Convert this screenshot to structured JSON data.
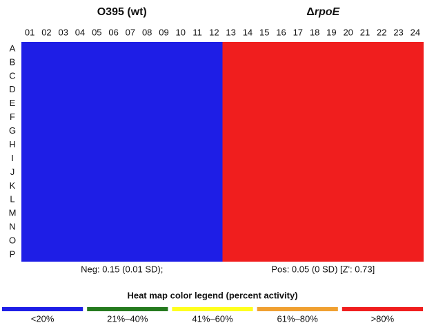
{
  "chart_data": {
    "type": "heatmap",
    "columns": [
      "01",
      "02",
      "03",
      "04",
      "05",
      "06",
      "07",
      "08",
      "09",
      "10",
      "11",
      "12",
      "13",
      "14",
      "15",
      "16",
      "17",
      "18",
      "19",
      "20",
      "21",
      "22",
      "23",
      "24"
    ],
    "rows": [
      "A",
      "B",
      "C",
      "D",
      "E",
      "F",
      "G",
      "H",
      "I",
      "J",
      "K",
      "L",
      "M",
      "N",
      "O",
      "P"
    ],
    "groups": [
      {
        "title": "O395 (wt)",
        "span": 12,
        "color": "#1e1ee6",
        "note": "Neg: 0.15 (0.01 SD);"
      },
      {
        "title_symbol": "Δ",
        "title": "rpoE",
        "span": 12,
        "color": "#f01e1e",
        "note": "Pos: 0.05 (0 SD) [Z': 0.73]"
      }
    ],
    "legend": {
      "title": "Heat map color legend (percent activity)",
      "items": [
        {
          "label": "<20%",
          "color": "#1e1ee6"
        },
        {
          "label": "21%–40%",
          "color": "#257a1e"
        },
        {
          "label": "41%–60%",
          "color": "#ffff1e"
        },
        {
          "label": "61%–80%",
          "color": "#f0a030"
        },
        {
          "label": ">80%",
          "color": "#f01e1e"
        }
      ]
    }
  }
}
